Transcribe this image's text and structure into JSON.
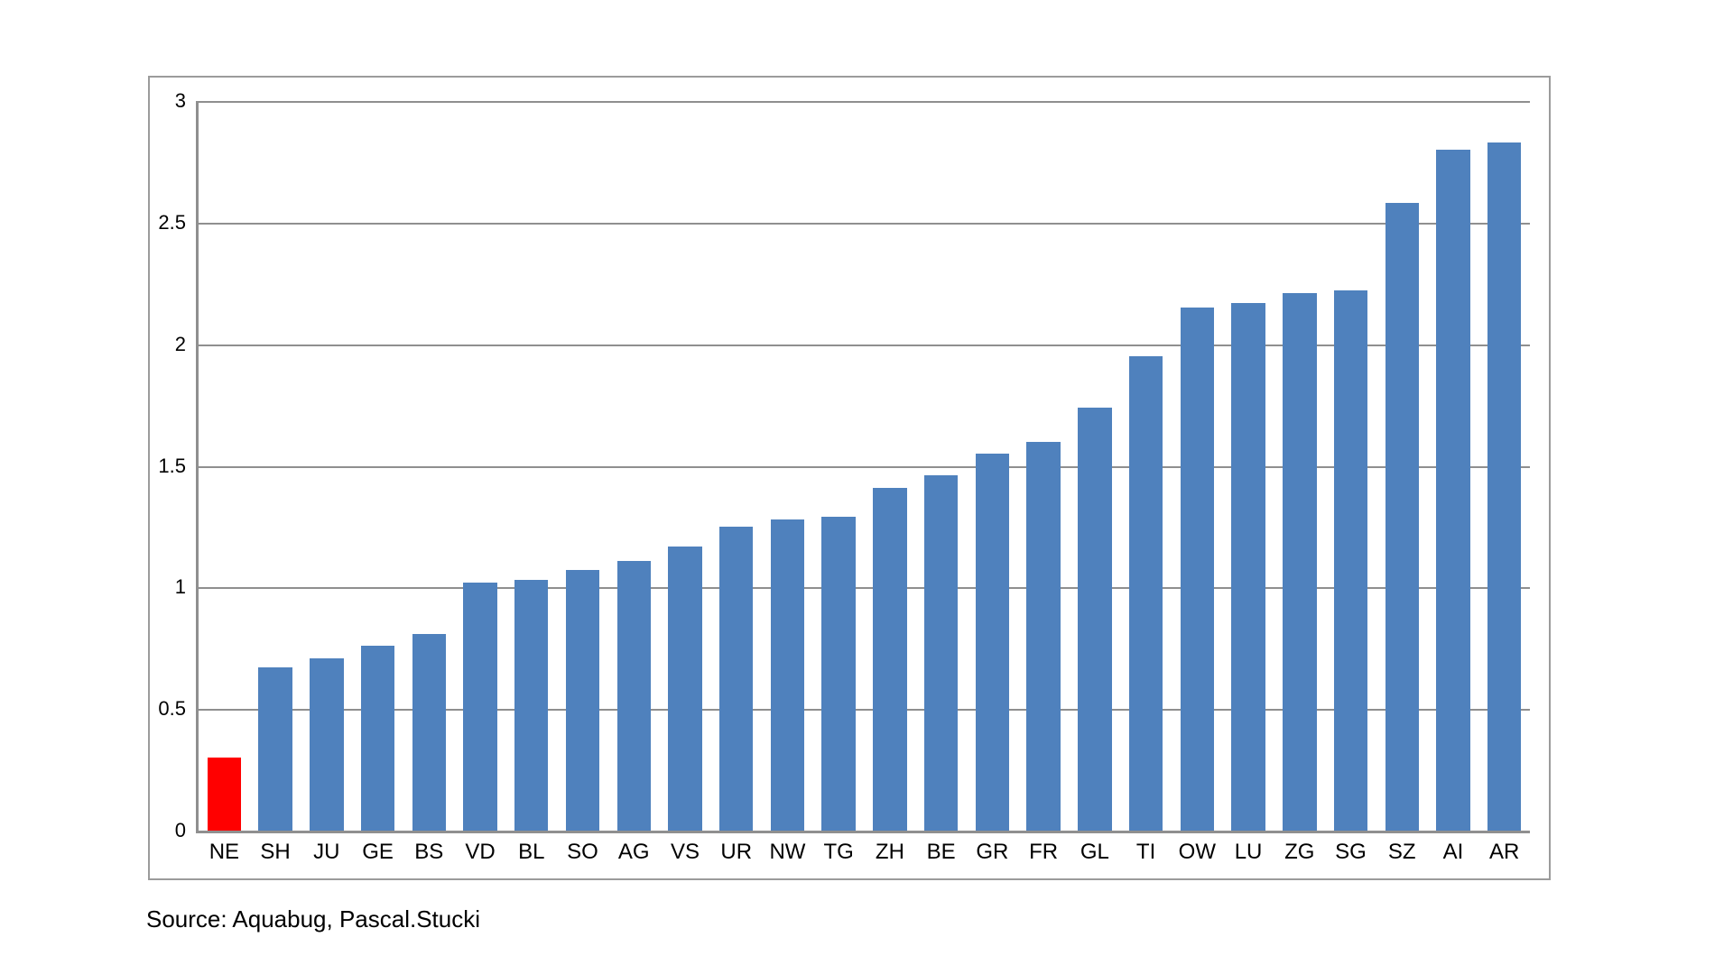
{
  "chart_data": {
    "type": "bar",
    "categories": [
      "NE",
      "SH",
      "JU",
      "GE",
      "BS",
      "VD",
      "BL",
      "SO",
      "AG",
      "VS",
      "UR",
      "NW",
      "TG",
      "ZH",
      "BE",
      "GR",
      "FR",
      "GL",
      "TI",
      "OW",
      "LU",
      "ZG",
      "SG",
      "SZ",
      "AI",
      "AR"
    ],
    "values": [
      0.3,
      0.67,
      0.71,
      0.76,
      0.81,
      1.02,
      1.03,
      1.07,
      1.11,
      1.17,
      1.25,
      1.28,
      1.29,
      1.41,
      1.46,
      1.55,
      1.6,
      1.74,
      1.95,
      2.15,
      2.17,
      2.21,
      2.22,
      2.58,
      2.8,
      2.83
    ],
    "title": "",
    "xlabel": "",
    "ylabel": "",
    "ylim": [
      0,
      3
    ],
    "yticks": [
      "0",
      "0.5",
      "1",
      "1.5",
      "2",
      "2.5",
      "3"
    ],
    "grid": true,
    "legend_position": "none",
    "highlight_index": 0,
    "colors": {
      "bar_default": "#4F81BD",
      "bar_highlight": "#FF0000",
      "gridline": "#8F8F8F",
      "axis": "#8F8F8F",
      "frame_border": "#9B9B9B",
      "text": "#000000",
      "background": "#FFFFFF"
    }
  },
  "source_note": "Source: Aquabug, Pascal.Stucki"
}
